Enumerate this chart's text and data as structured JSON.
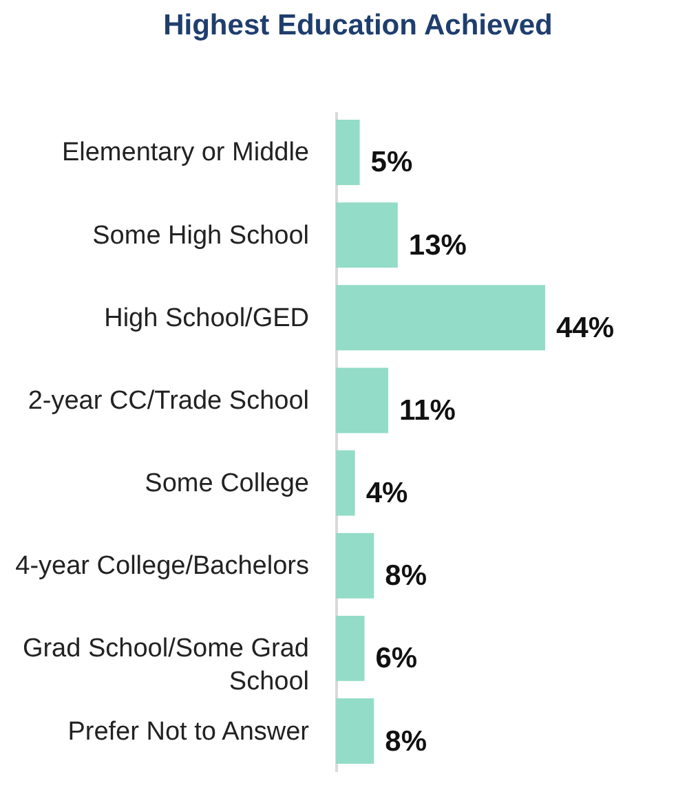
{
  "chart_data": {
    "type": "bar",
    "orientation": "horizontal",
    "title": "Highest Education Achieved",
    "categories": [
      "Elementary or Middle",
      "Some High School",
      "High School/GED",
      "2-year CC/Trade School",
      "Some College",
      "4-year College/Bachelors",
      "Grad School/Some Grad School",
      "Prefer Not to Answer"
    ],
    "values": [
      5,
      13,
      44,
      11,
      4,
      8,
      6,
      8
    ],
    "value_labels": [
      "5%",
      "13%",
      "44%",
      "11%",
      "4%",
      "8%",
      "6%",
      "8%"
    ],
    "color": "#93dcc7",
    "tick_labels": "y"
  }
}
